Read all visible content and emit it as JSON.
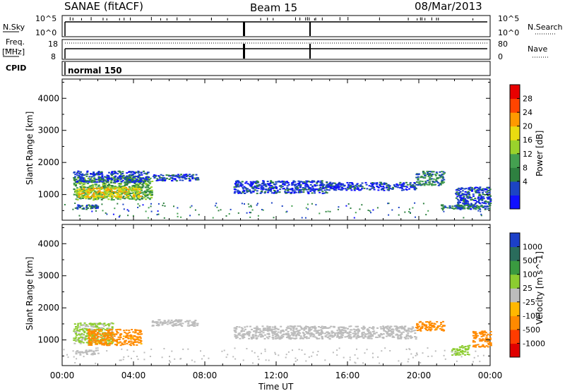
{
  "header": {
    "station": "SANAE (fitACF)",
    "beam": "Beam 15",
    "date": "08/Mar/2013"
  },
  "ancillary": {
    "noise_label": "N.Sky",
    "noise_ticks": [
      "10^5",
      "10^0"
    ],
    "noise_right_label": "N.Search",
    "freq_label_1": "Freq.",
    "freq_label_2": "[MHz]",
    "freq_ticks": [
      "18",
      "8"
    ],
    "nave_ticks": [
      "80",
      "0"
    ],
    "nave_label": "Nave",
    "cpid_label": "CPID",
    "cpid_value": "normal 150"
  },
  "colors": {
    "power": [
      "#1010ff",
      "#1c44c4",
      "#2e8040",
      "#44a050",
      "#9ad22c",
      "#eadc10",
      "#ff9a00",
      "#ff4400",
      "#e80000"
    ],
    "velocity": [
      "#e00000",
      "#ff3c00",
      "#ff8a00",
      "#ffb800",
      "#bcbcbc",
      "#8ccc30",
      "#3a9a40",
      "#2a6c5c",
      "#1c40c8"
    ]
  },
  "chart_data": [
    {
      "type": "heatmap",
      "name": "power",
      "xlabel": "",
      "ylabel": "Slant Range [km]",
      "xlim": [
        "00:00",
        "24:00"
      ],
      "x_ticks": [
        "00:00",
        "04:00",
        "08:00",
        "12:00",
        "16:00",
        "20:00",
        "00:00"
      ],
      "ylim": [
        200,
        4600
      ],
      "y_ticks": [
        "4000",
        "3000",
        "2000",
        "1000"
      ],
      "colorbar": {
        "label": "Power [dB]",
        "range": [
          0,
          32
        ],
        "ticks": [
          "28",
          "24",
          "20",
          "16",
          "12",
          "8",
          "4"
        ]
      },
      "regions": [
        {
          "t": [
            0.6,
            5.0
          ],
          "r": [
            850,
            1550
          ],
          "level": 14
        },
        {
          "t": [
            0.6,
            4.8
          ],
          "r": [
            1400,
            1750
          ],
          "level": 6
        },
        {
          "t": [
            0.8,
            4.4
          ],
          "r": [
            920,
            1250
          ],
          "level": 22
        },
        {
          "t": [
            0.7,
            2.0
          ],
          "r": [
            550,
            700
          ],
          "level": 7
        },
        {
          "t": [
            5.0,
            7.6
          ],
          "r": [
            1450,
            1650
          ],
          "level": 5
        },
        {
          "t": [
            9.6,
            14.8
          ],
          "r": [
            1050,
            1450
          ],
          "level": 5
        },
        {
          "t": [
            14.8,
            19.8
          ],
          "r": [
            1150,
            1400
          ],
          "level": 5
        },
        {
          "t": [
            19.8,
            21.4
          ],
          "r": [
            1300,
            1750
          ],
          "level": 10
        },
        {
          "t": [
            22.0,
            24.0
          ],
          "r": [
            550,
            1250
          ],
          "level": 6
        },
        {
          "t": [
            21.2,
            23.6
          ],
          "r": [
            560,
            700
          ],
          "level": 10
        }
      ]
    },
    {
      "type": "heatmap",
      "name": "velocity",
      "xlabel": "Time UT",
      "ylabel": "Slant Range [km]",
      "xlim": [
        "00:00",
        "24:00"
      ],
      "x_ticks": [
        "00:00",
        "04:00",
        "08:00",
        "12:00",
        "16:00",
        "20:00",
        "00:00"
      ],
      "ylim": [
        200,
        4600
      ],
      "y_ticks": [
        "4000",
        "3000",
        "2000",
        "1000"
      ],
      "colorbar": {
        "label": "Velocity [m s^-1]",
        "ticks": [
          "1000",
          "500",
          "100",
          "25",
          "-25",
          "-100",
          "-500",
          "-1000"
        ]
      },
      "regions": [
        {
          "t": [
            0.6,
            2.8
          ],
          "r": [
            900,
            1550
          ],
          "level": 30
        },
        {
          "t": [
            1.4,
            4.4
          ],
          "r": [
            850,
            1350
          ],
          "level": -150
        },
        {
          "t": [
            0.7,
            2.0
          ],
          "r": [
            550,
            700
          ],
          "level": 0
        },
        {
          "t": [
            5.0,
            7.6
          ],
          "r": [
            1450,
            1650
          ],
          "level": 0
        },
        {
          "t": [
            9.6,
            19.8
          ],
          "r": [
            1050,
            1450
          ],
          "level": 0
        },
        {
          "t": [
            19.8,
            21.4
          ],
          "r": [
            1300,
            1600
          ],
          "level": -150
        },
        {
          "t": [
            21.8,
            22.8
          ],
          "r": [
            550,
            850
          ],
          "level": 60
        },
        {
          "t": [
            23.0,
            24.0
          ],
          "r": [
            800,
            1300
          ],
          "level": -200
        }
      ]
    }
  ]
}
